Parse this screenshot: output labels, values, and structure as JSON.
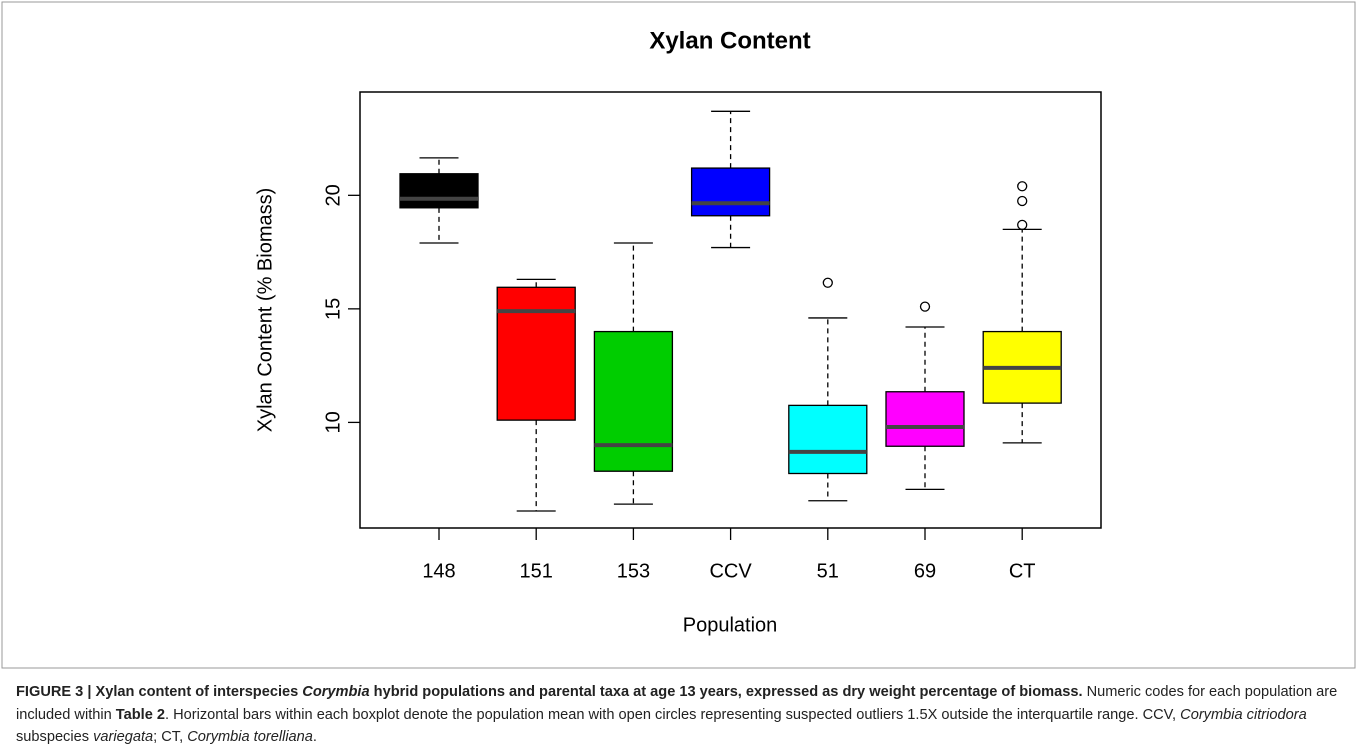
{
  "chart_data": {
    "type": "box",
    "title": "Xylan Content",
    "x_label": "Population",
    "y_label": "Xylan Content (% Biomass)",
    "categories": [
      "148",
      "151",
      "153",
      "CCV",
      "51",
      "69",
      "CT"
    ],
    "boxes": [
      {
        "color": "#000000",
        "min": 17.9,
        "q1": 19.45,
        "median": 19.85,
        "q3": 20.95,
        "max": 21.65,
        "outliers": []
      },
      {
        "color": "#ff0000",
        "min": 6.1,
        "q1": 10.1,
        "median": 14.9,
        "q3": 15.95,
        "max": 16.3,
        "outliers": []
      },
      {
        "color": "#00cd00",
        "min": 6.4,
        "q1": 7.85,
        "median": 9.0,
        "q3": 14.0,
        "max": 17.9,
        "outliers": []
      },
      {
        "color": "#0000ff",
        "min": 17.7,
        "q1": 19.1,
        "median": 19.65,
        "q3": 21.2,
        "max": 23.7,
        "outliers": []
      },
      {
        "color": "#00ffff",
        "min": 6.55,
        "q1": 7.75,
        "median": 8.7,
        "q3": 10.75,
        "max": 14.6,
        "outliers": [
          16.15
        ]
      },
      {
        "color": "#ff00ff",
        "min": 7.05,
        "q1": 8.95,
        "median": 9.8,
        "q3": 11.35,
        "max": 14.2,
        "outliers": [
          15.1
        ]
      },
      {
        "color": "#ffff00",
        "min": 9.1,
        "q1": 10.85,
        "median": 12.4,
        "q3": 14.0,
        "max": 18.5,
        "outliers": [
          18.7,
          19.75,
          20.4
        ]
      }
    ],
    "ylim": [
      5.35,
      24.55
    ],
    "yticks": [
      10,
      15,
      20
    ]
  },
  "caption": [
    {
      "text": "FIGURE 3 | Xylan content of interspecies ",
      "style": "bold"
    },
    {
      "text": "Corymbia",
      "style": "bold-italic"
    },
    {
      "text": " hybrid populations and parental taxa at age 13 years, expressed as dry weight percentage of biomass.",
      "style": "bold"
    },
    {
      "text": " Numeric codes for each population are included within ",
      "style": "normal"
    },
    {
      "text": "Table 2",
      "style": "bold"
    },
    {
      "text": ". Horizontal bars within each boxplot denote the population mean with open circles representing suspected outliers 1.5X outside the interquartile range. CCV, ",
      "style": "normal"
    },
    {
      "text": "Corymbia citriodora",
      "style": "italic"
    },
    {
      "text": " subspecies ",
      "style": "normal"
    },
    {
      "text": "variegata",
      "style": "italic"
    },
    {
      "text": "; CT, ",
      "style": "normal"
    },
    {
      "text": "Corymbia torelliana",
      "style": "italic"
    },
    {
      "text": ".",
      "style": "normal"
    }
  ]
}
